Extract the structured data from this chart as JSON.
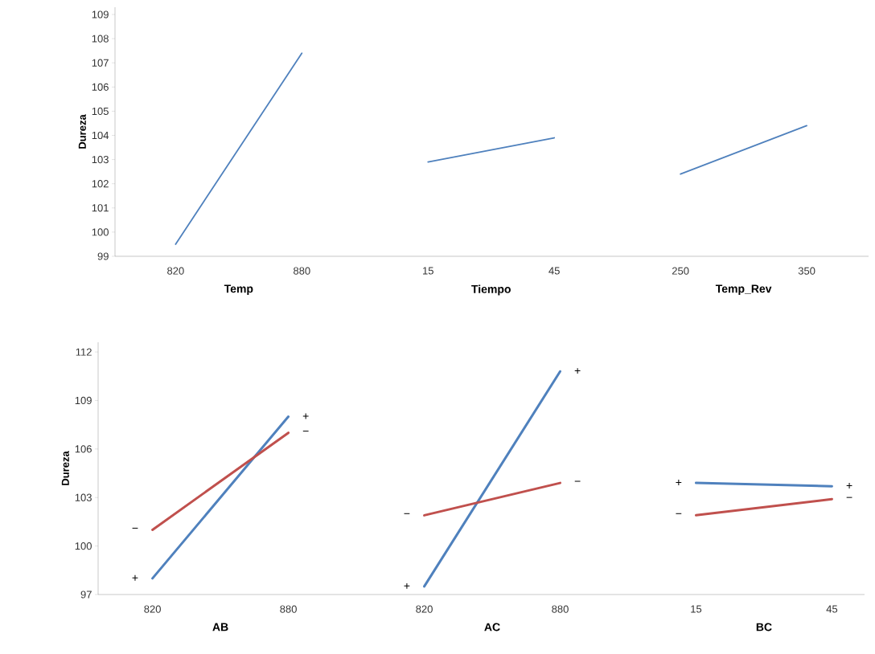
{
  "chart_data": [
    {
      "type": "line",
      "ylabel": "Dureza",
      "categories": [
        "820",
        "880",
        "15",
        "45",
        "250",
        "350"
      ],
      "ylim": [
        99,
        109.3
      ],
      "yticks": [
        99,
        100,
        101,
        102,
        103,
        104,
        105,
        106,
        107,
        108,
        109
      ],
      "marker": "none",
      "line_style": "solid",
      "annotations": [
        "Temp",
        "Tiempo",
        "Temp_Rev"
      ],
      "series": [
        {
          "color": "#4f81bd",
          "values": [
            99.5,
            107.4,
            null,
            null,
            null,
            null
          ]
        },
        {
          "color": "#4f81bd",
          "values": [
            null,
            null,
            102.9,
            103.9,
            null,
            null
          ]
        },
        {
          "color": "#4f81bd",
          "values": [
            null,
            null,
            null,
            null,
            102.4,
            104.4
          ]
        }
      ]
    },
    {
      "type": "line",
      "ylabel": "Dureza",
      "categories": [
        "820",
        "880",
        "820",
        "880",
        "15",
        "45"
      ],
      "ylim": [
        97,
        112.6
      ],
      "yticks": [
        97,
        100,
        103,
        106,
        109,
        112
      ],
      "marker": "none",
      "line_style": "solid",
      "annotations": [
        "AB",
        "AC",
        "BC"
      ],
      "series": [
        {
          "color": "#4f81bd",
          "values": [
            98.0,
            108.0,
            null,
            null,
            null,
            null
          ],
          "value_labels": [
            "+",
            "+",
            null,
            null,
            null,
            null
          ]
        },
        {
          "color": "#c0504d",
          "values": [
            101.0,
            107.0,
            null,
            null,
            null,
            null
          ],
          "value_labels": [
            "−",
            "−",
            null,
            null,
            null,
            null
          ]
        },
        {
          "color": "#4f81bd",
          "values": [
            null,
            null,
            97.5,
            110.8,
            null,
            null
          ],
          "value_labels": [
            null,
            null,
            "+",
            "+",
            null,
            null
          ]
        },
        {
          "color": "#c0504d",
          "values": [
            null,
            null,
            101.9,
            103.9,
            null,
            null
          ],
          "value_labels": [
            null,
            null,
            "−",
            "−",
            null,
            null
          ]
        },
        {
          "color": "#4f81bd",
          "values": [
            null,
            null,
            null,
            null,
            103.9,
            103.7
          ],
          "value_labels": [
            null,
            null,
            null,
            null,
            "+",
            "+"
          ]
        },
        {
          "color": "#c0504d",
          "values": [
            null,
            null,
            null,
            null,
            101.9,
            102.9
          ],
          "value_labels": [
            null,
            null,
            null,
            null,
            "−",
            "−"
          ]
        }
      ]
    }
  ]
}
